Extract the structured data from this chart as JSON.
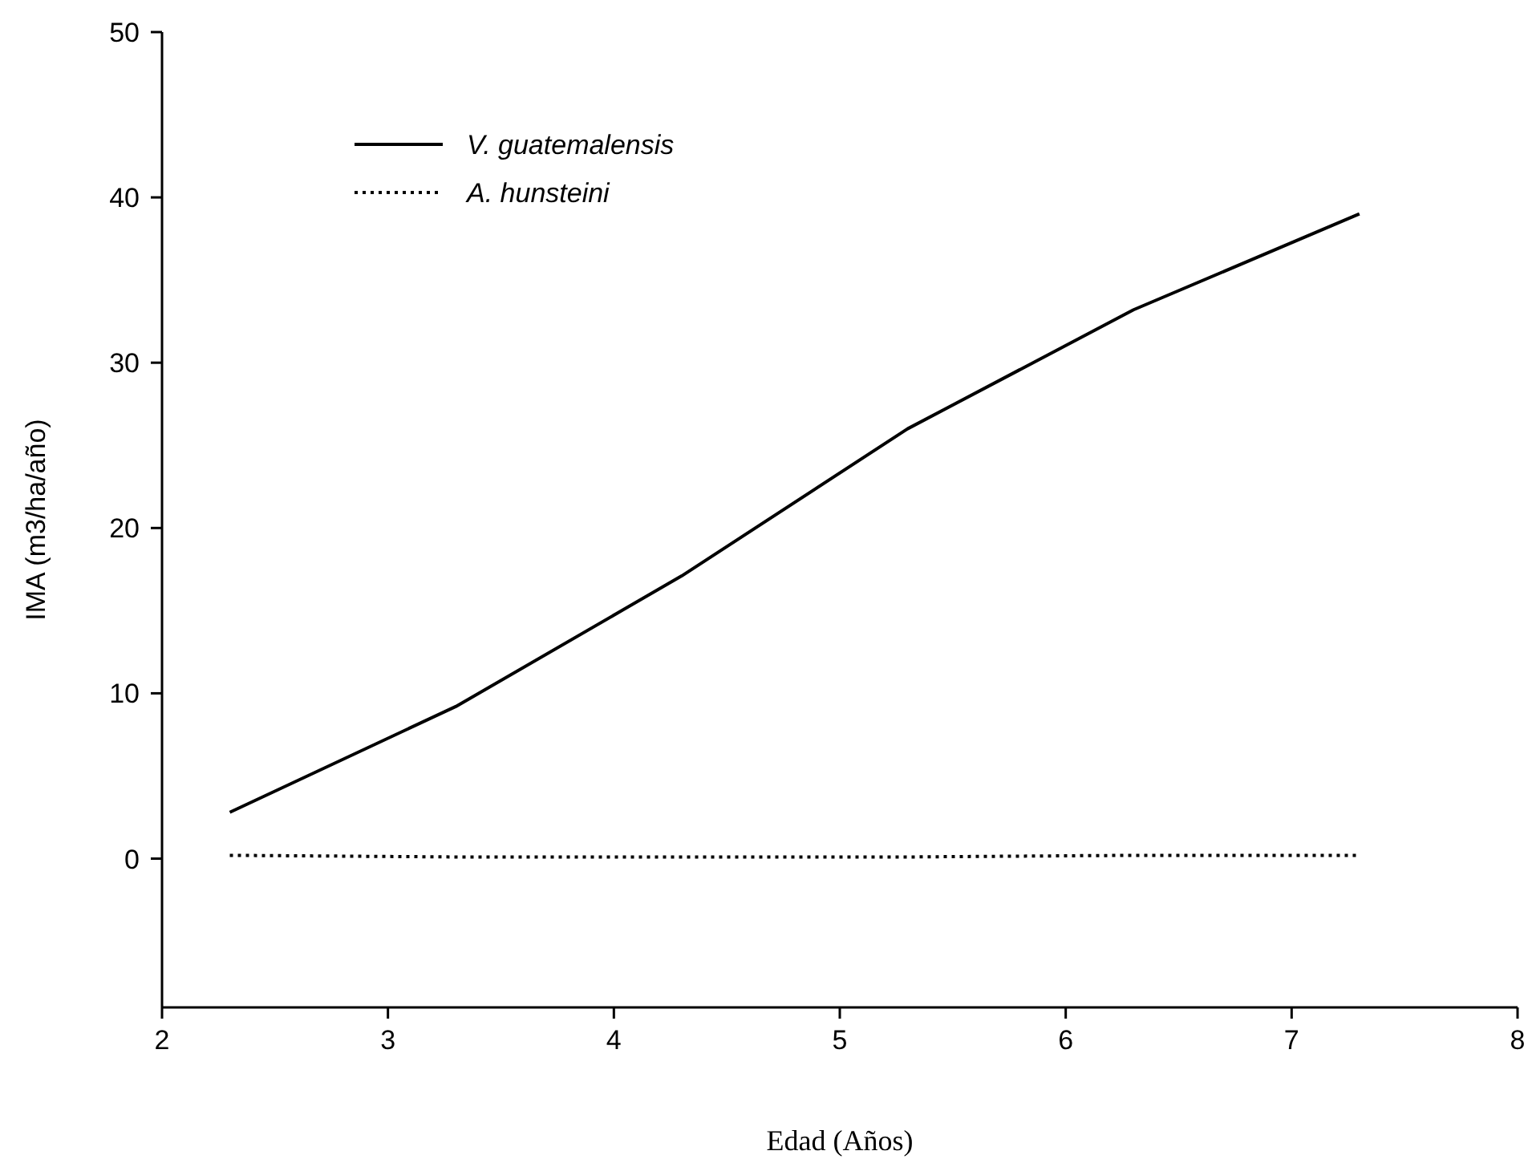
{
  "chart_data": {
    "type": "line",
    "xlabel": "Edad (Años)",
    "ylabel": "IMA (m3/ha/año)",
    "x": [
      2.3,
      3.3,
      4.3,
      5.3,
      6.3,
      7.3
    ],
    "series": [
      {
        "name": "V. guatemalensis",
        "color": "#000000",
        "line_style": "solid",
        "values": [
          2.8,
          9.2,
          17.1,
          26.0,
          33.2,
          39.0
        ]
      },
      {
        "name": "A. hunsteini",
        "color": "#000000",
        "line_style": "dotted",
        "values": [
          0.2,
          0.1,
          0.1,
          0.1,
          0.2,
          0.2
        ]
      }
    ],
    "xlim": [
      2,
      8
    ],
    "xticks": [
      2,
      3,
      4,
      5,
      6,
      7,
      8
    ],
    "ylim": [
      -9,
      50
    ],
    "yticks": [
      0,
      10,
      20,
      30,
      40,
      50
    ],
    "grid": false,
    "legend": "top left",
    "marker": "none"
  }
}
